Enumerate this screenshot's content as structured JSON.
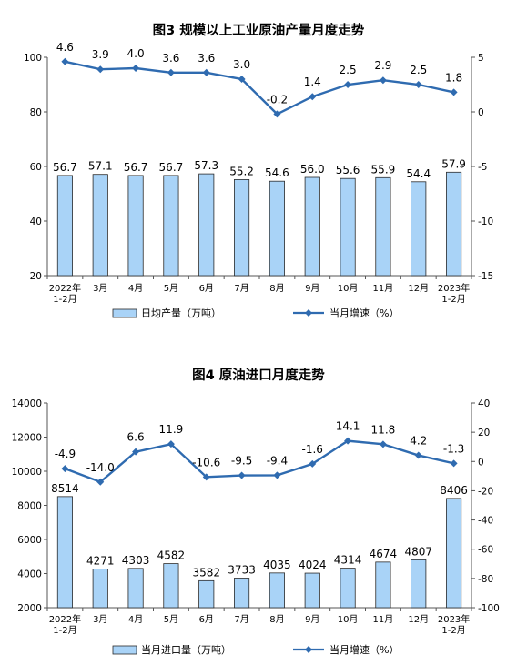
{
  "charts": [
    {
      "title": "图3  规模以上工业原油产量月度走势",
      "categories": [
        [
          "2022年",
          "1-2月"
        ],
        [
          "3月"
        ],
        [
          "4月"
        ],
        [
          "5月"
        ],
        [
          "6月"
        ],
        [
          "7月"
        ],
        [
          "8月"
        ],
        [
          "9月"
        ],
        [
          "10月"
        ],
        [
          "11月"
        ],
        [
          "12月"
        ],
        [
          "2023年",
          "1-2月"
        ]
      ],
      "left_ticks": [
        "20",
        "40",
        "60",
        "80",
        "100"
      ],
      "right_ticks": [
        "-15",
        "-10",
        "-5",
        "0",
        "5"
      ],
      "bar_labels": [
        "56.7",
        "57.1",
        "56.7",
        "56.7",
        "57.3",
        "55.2",
        "54.6",
        "56.0",
        "55.6",
        "55.9",
        "54.4",
        "57.9"
      ],
      "line_labels": [
        "4.6",
        "3.9",
        "4.0",
        "3.6",
        "3.6",
        "3.0",
        "-0.2",
        "1.4",
        "2.5",
        "2.9",
        "2.5",
        "1.8"
      ],
      "legend_bar": "日均产量（万吨）",
      "legend_line": "当月增速（%）"
    },
    {
      "title": "图4  原油进口月度走势",
      "categories": [
        [
          "2022年",
          "1-2月"
        ],
        [
          "3月"
        ],
        [
          "4月"
        ],
        [
          "5月"
        ],
        [
          "6月"
        ],
        [
          "7月"
        ],
        [
          "8月"
        ],
        [
          "9月"
        ],
        [
          "10月"
        ],
        [
          "11月"
        ],
        [
          "12月"
        ],
        [
          "2023年",
          "1-2月"
        ]
      ],
      "left_ticks": [
        "2000",
        "4000",
        "6000",
        "8000",
        "10000",
        "12000",
        "14000"
      ],
      "right_ticks": [
        "-100",
        "-80",
        "-60",
        "-40",
        "-20",
        "0",
        "20",
        "40"
      ],
      "bar_labels": [
        "8514",
        "4271",
        "4303",
        "4582",
        "3582",
        "3733",
        "4035",
        "4024",
        "4314",
        "4674",
        "4807",
        "8406"
      ],
      "line_labels": [
        "-4.9",
        "-14.0",
        "6.6",
        "11.9",
        "-10.6",
        "-9.5",
        "-9.4",
        "-1.6",
        "14.1",
        "11.8",
        "4.2",
        "-1.3"
      ],
      "legend_bar": "当月进口量（万吨）",
      "legend_line": "当月增速（%）"
    }
  ],
  "colors": {
    "bar_fill": "#a9d3f7",
    "bar_stroke": "#2a2a2a",
    "line": "#2f6bb0",
    "axis": "#555555"
  },
  "chart_data": [
    {
      "type": "bar",
      "title": "图3  规模以上工业原油产量月度走势",
      "categories": [
        "2022年1-2月",
        "3月",
        "4月",
        "5月",
        "6月",
        "7月",
        "8月",
        "9月",
        "10月",
        "11月",
        "12月",
        "2023年1-2月"
      ],
      "series": [
        {
          "name": "日均产量（万吨）",
          "type": "bar",
          "axis": "left",
          "values": [
            56.7,
            57.1,
            56.7,
            56.7,
            57.3,
            55.2,
            54.6,
            56.0,
            55.6,
            55.9,
            54.4,
            57.9
          ]
        },
        {
          "name": "当月增速（%）",
          "type": "line",
          "axis": "right",
          "values": [
            4.6,
            3.9,
            4.0,
            3.6,
            3.6,
            3.0,
            -0.2,
            1.4,
            2.5,
            2.9,
            2.5,
            1.8
          ]
        }
      ],
      "ylim_left": [
        20,
        100
      ],
      "ylim_right": [
        -15,
        5
      ],
      "legend": "bottom"
    },
    {
      "type": "bar",
      "title": "图4  原油进口月度走势",
      "categories": [
        "2022年1-2月",
        "3月",
        "4月",
        "5月",
        "6月",
        "7月",
        "8月",
        "9月",
        "10月",
        "11月",
        "12月",
        "2023年1-2月"
      ],
      "series": [
        {
          "name": "当月进口量（万吨）",
          "type": "bar",
          "axis": "left",
          "values": [
            8514,
            4271,
            4303,
            4582,
            3582,
            3733,
            4035,
            4024,
            4314,
            4674,
            4807,
            8406
          ]
        },
        {
          "name": "当月增速（%）",
          "type": "line",
          "axis": "right",
          "values": [
            -4.9,
            -14.0,
            6.6,
            11.9,
            -10.6,
            -9.5,
            -9.4,
            -1.6,
            14.1,
            11.8,
            4.2,
            -1.3
          ]
        }
      ],
      "ylim_left": [
        2000,
        14000
      ],
      "ylim_right": [
        -100,
        40
      ],
      "legend": "bottom"
    }
  ]
}
